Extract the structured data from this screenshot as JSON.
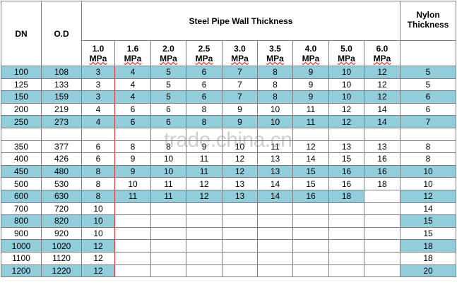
{
  "header": {
    "dn": "DN",
    "od": "O.D",
    "steel": "Steel Pipe Wall Thickness",
    "nylon": "Nylon Thickness"
  },
  "pressures": [
    {
      "rating": "1.0",
      "unit": "MPa"
    },
    {
      "rating": "1.6",
      "unit": "MPa"
    },
    {
      "rating": "2.0",
      "unit": "MPa"
    },
    {
      "rating": "2.5",
      "unit": "MPa"
    },
    {
      "rating": "3.0",
      "unit": "MPa"
    },
    {
      "rating": "3.5",
      "unit": "MPa"
    },
    {
      "rating": "4.0",
      "unit": "MPa"
    },
    {
      "rating": "5.0",
      "unit": "MPa"
    },
    {
      "rating": "6.0",
      "unit": "MPa"
    }
  ],
  "highlight_color": "#92cddc",
  "rows": [
    {
      "dn": "100",
      "od": "108",
      "steel": [
        "3",
        "4",
        "5",
        "6",
        "7",
        "8",
        "9",
        "10",
        "12"
      ],
      "nylon": "5",
      "highlight": true
    },
    {
      "dn": "125",
      "od": "133",
      "steel": [
        "3",
        "4",
        "5",
        "6",
        "7",
        "8",
        "9",
        "10",
        "12"
      ],
      "nylon": "5",
      "highlight": false
    },
    {
      "dn": "150",
      "od": "159",
      "steel": [
        "3",
        "4",
        "5",
        "6",
        "7",
        "8",
        "9",
        "10",
        "12"
      ],
      "nylon": "6",
      "highlight": true
    },
    {
      "dn": "200",
      "od": "219",
      "steel": [
        "4",
        "6",
        "6",
        "8",
        "9",
        "10",
        "11",
        "12",
        "14"
      ],
      "nylon": "6",
      "highlight": false
    },
    {
      "dn": "250",
      "od": "273",
      "steel": [
        "4",
        "6",
        "6",
        "8",
        "9",
        "10",
        "11",
        "12",
        "14"
      ],
      "nylon": "7",
      "highlight": true
    },
    {
      "dn": "350",
      "od": "377",
      "steel": [
        "6",
        "8",
        "8",
        "9",
        "10",
        "11",
        "12",
        "13",
        "13"
      ],
      "nylon": "8",
      "highlight": false
    },
    {
      "dn": "400",
      "od": "426",
      "steel": [
        "6",
        "9",
        "10",
        "11",
        "12",
        "13",
        "14",
        "15",
        "16"
      ],
      "nylon": "8",
      "highlight": false
    },
    {
      "dn": "450",
      "od": "480",
      "steel": [
        "8",
        "9",
        "10",
        "11",
        "12",
        "13",
        "15",
        "16",
        "16"
      ],
      "nylon": "10",
      "highlight": true
    },
    {
      "dn": "500",
      "od": "530",
      "steel": [
        "8",
        "10",
        "11",
        "12",
        "13",
        "14",
        "15",
        "16",
        "18"
      ],
      "nylon": "10",
      "highlight": false
    },
    {
      "dn": "600",
      "od": "630",
      "steel": [
        "8",
        "11",
        "11",
        "12",
        "13",
        "14",
        "16",
        "18"
      ],
      "nylon": "12",
      "highlight": true
    },
    {
      "dn": "700",
      "od": "720",
      "steel": [
        "10"
      ],
      "nylon": "14",
      "highlight": false
    },
    {
      "dn": "800",
      "od": "820",
      "steel": [
        "10"
      ],
      "nylon": "15",
      "highlight": true
    },
    {
      "dn": "900",
      "od": "920",
      "steel": [
        "10"
      ],
      "nylon": "15",
      "highlight": false
    },
    {
      "dn": "1000",
      "od": "1020",
      "steel": [
        "12"
      ],
      "nylon": "18",
      "highlight": true
    },
    {
      "dn": "1100",
      "od": "1120",
      "steel": [
        "12"
      ],
      "nylon": "18",
      "highlight": false
    },
    {
      "dn": "1200",
      "od": "1220",
      "steel": [
        "12"
      ],
      "nylon": "20",
      "highlight": true
    }
  ],
  "watermark": "trade.china.cn"
}
